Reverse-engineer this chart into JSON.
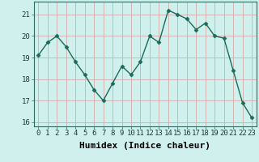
{
  "xlabel": "Humidex (Indice chaleur)",
  "x_values": [
    0,
    1,
    2,
    3,
    4,
    5,
    6,
    7,
    8,
    9,
    10,
    11,
    12,
    13,
    14,
    15,
    16,
    17,
    18,
    19,
    20,
    21,
    22,
    23
  ],
  "y_values": [
    19.1,
    19.7,
    20.0,
    19.5,
    18.8,
    18.2,
    17.5,
    17.0,
    17.8,
    18.6,
    18.2,
    18.8,
    20.0,
    19.7,
    21.2,
    21.0,
    20.8,
    20.3,
    20.6,
    20.0,
    19.9,
    18.4,
    16.9,
    16.2
  ],
  "line_color": "#1a6b5a",
  "marker": "D",
  "marker_size": 2.5,
  "background_color": "#cff0ec",
  "grid_color": "#d4aaaa",
  "ylim": [
    15.8,
    21.6
  ],
  "yticks": [
    16,
    17,
    18,
    19,
    20,
    21
  ],
  "xlim": [
    -0.5,
    23.5
  ],
  "xticks": [
    0,
    1,
    2,
    3,
    4,
    5,
    6,
    7,
    8,
    9,
    10,
    11,
    12,
    13,
    14,
    15,
    16,
    17,
    18,
    19,
    20,
    21,
    22,
    23
  ],
  "tick_fontsize": 6.5,
  "xlabel_fontsize": 8,
  "line_width": 1.0
}
